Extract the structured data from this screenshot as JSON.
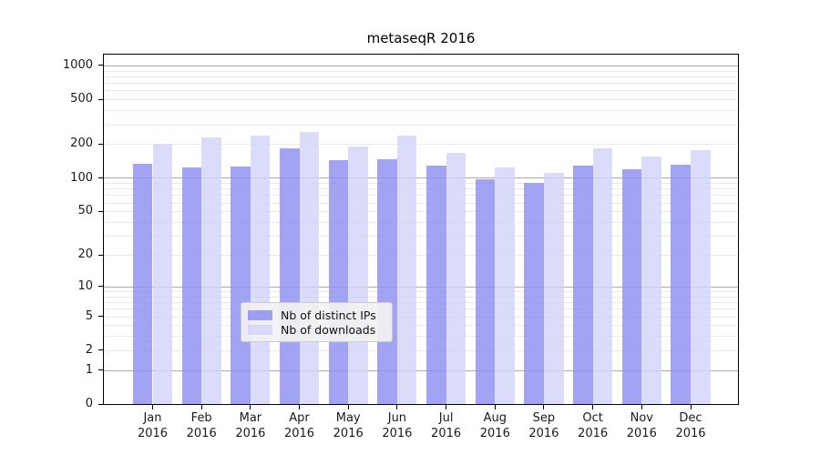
{
  "chart_data": {
    "type": "bar",
    "title": "metaseqR 2016",
    "year_label": "2016",
    "categories": [
      "Jan",
      "Feb",
      "Mar",
      "Apr",
      "May",
      "Jun",
      "Jul",
      "Aug",
      "Sep",
      "Oct",
      "Nov",
      "Dec"
    ],
    "series": [
      {
        "name": "Nb of distinct IPs",
        "color": "#8f8ff0",
        "values": [
          134,
          124,
          126,
          183,
          144,
          148,
          130,
          97,
          90,
          128,
          119,
          132
        ]
      },
      {
        "name": "Nb of downloads",
        "color": "#d3d3f9",
        "values": [
          200,
          229,
          240,
          258,
          192,
          240,
          166,
          124,
          111,
          184,
          156,
          177
        ]
      }
    ],
    "yticks": [
      0,
      1,
      2,
      5,
      10,
      20,
      50,
      100,
      200,
      500,
      1000
    ],
    "scale": "log1p",
    "ylim": [
      0,
      1250
    ],
    "grid": true,
    "legend_position": "lower center"
  },
  "colors": {
    "major_grid": "#ababab",
    "minor_grid": "#eaeaea",
    "axis": "#000000",
    "text": "#1a1a1a",
    "legend_bg": "#f2f2f2",
    "legend_border": "#cccccc"
  }
}
